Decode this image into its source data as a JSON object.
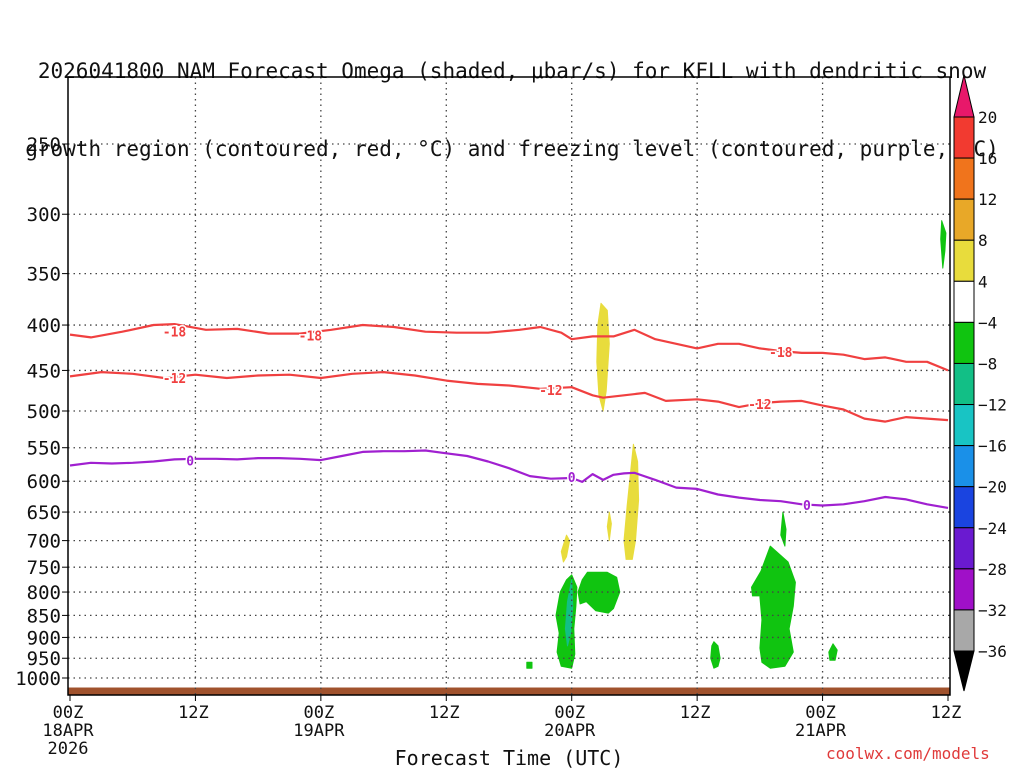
{
  "title_line1": "2026041800 NAM Forecast Omega (shaded, μbar/s) for KFLL with dendritic snow",
  "title_line2": "growth region (contoured, red, °C) and freezing level (contoured, purple, °C)",
  "credit": "coolwx.com/models",
  "chart_data": {
    "type": "heatmap",
    "title": "2026041800 NAM Forecast Omega (shaded, μbar/s) for KFLL with dendritic snow growth region (contoured, red, °C) and freezing level (contoured, purple, °C)",
    "xlabel": "Forecast Time (UTC)",
    "ylabel": "",
    "xlim": [
      0,
      84
    ],
    "ylim": [
      1000,
      200
    ],
    "y_scale": "log-pressure",
    "grid": true,
    "y_ticks": [
      250,
      300,
      350,
      400,
      450,
      500,
      550,
      600,
      650,
      700,
      750,
      800,
      850,
      900,
      950,
      1000
    ],
    "x_ticks": [
      {
        "x": 0,
        "line1": "00Z",
        "line2": "18APR",
        "line3": "2026"
      },
      {
        "x": 12,
        "line1": "12Z",
        "line2": "",
        "line3": ""
      },
      {
        "x": 24,
        "line1": "00Z",
        "line2": "19APR",
        "line3": ""
      },
      {
        "x": 36,
        "line1": "12Z",
        "line2": "",
        "line3": ""
      },
      {
        "x": 48,
        "line1": "00Z",
        "line2": "20APR",
        "line3": ""
      },
      {
        "x": 60,
        "line1": "12Z",
        "line2": "",
        "line3": ""
      },
      {
        "x": 72,
        "line1": "00Z",
        "line2": "21APR",
        "line3": ""
      },
      {
        "x": 84,
        "line1": "12Z",
        "line2": "",
        "line3": ""
      }
    ],
    "colorbar": {
      "labels": [
        "20",
        "16",
        "12",
        "8",
        "4",
        "−4",
        "−8",
        "−12",
        "−16",
        "−20",
        "−24",
        "−28",
        "−32",
        "−36"
      ],
      "colors": [
        "#e8186a",
        "#f23a30",
        "#f0741c",
        "#e8a828",
        "#e8dc3c",
        "#ffffff",
        "#10c410",
        "#12bf86",
        "#18c4c4",
        "#1a90e8",
        "#1a44e0",
        "#6a1ad0",
        "#a010c8",
        "#a8a8a8",
        "#000000"
      ]
    },
    "contours": [
      {
        "name": "-18",
        "color": "#f04040",
        "x": [
          0,
          2,
          5,
          8,
          10,
          13,
          16,
          19,
          22,
          25,
          28,
          31,
          34,
          37,
          40,
          43,
          45,
          47,
          48,
          50,
          52,
          54,
          56,
          58,
          60,
          62,
          64,
          66,
          68,
          70,
          72,
          74,
          76,
          78,
          80,
          82,
          84
        ],
        "p": [
          410,
          413,
          407,
          400,
          399,
          405,
          404,
          409,
          409,
          405,
          400,
          402,
          407,
          408,
          408,
          405,
          402,
          408,
          415,
          412,
          412,
          405,
          415,
          420,
          425,
          420,
          420,
          425,
          428,
          430,
          430,
          432,
          437,
          435,
          440,
          440,
          450
        ]
      },
      {
        "name": "-12",
        "color": "#f04040",
        "x": [
          0,
          3,
          6,
          9,
          12,
          15,
          18,
          21,
          24,
          27,
          30,
          33,
          36,
          39,
          42,
          45,
          48,
          50,
          51,
          53,
          55,
          57,
          60,
          62,
          64,
          66,
          68,
          70,
          72,
          74,
          76,
          78,
          80,
          82,
          84
        ],
        "p": [
          457,
          452,
          454,
          459,
          455,
          459,
          456,
          455,
          459,
          454,
          452,
          456,
          462,
          466,
          468,
          472,
          470,
          480,
          483,
          480,
          477,
          487,
          485,
          488,
          495,
          490,
          488,
          487,
          493,
          498,
          510,
          514,
          508,
          510,
          512
        ]
      },
      {
        "name": "0",
        "color": "#a020d0",
        "x": [
          0,
          2,
          4,
          6,
          8,
          10,
          12,
          14,
          16,
          18,
          20,
          22,
          24,
          26,
          28,
          30,
          32,
          34,
          36,
          38,
          40,
          42,
          44,
          46,
          48,
          49,
          50,
          51,
          52,
          53,
          54,
          56,
          58,
          60,
          62,
          64,
          66,
          68,
          70,
          72,
          74,
          76,
          78,
          80,
          82,
          84
        ],
        "p": [
          576,
          572,
          573,
          572,
          570,
          567,
          566,
          566,
          567,
          565,
          565,
          566,
          568,
          562,
          556,
          555,
          555,
          554,
          558,
          562,
          570,
          580,
          592,
          596,
          595,
          601,
          589,
          598,
          590,
          588,
          587,
          598,
          610,
          612,
          621,
          626,
          630,
          632,
          637,
          639,
          637,
          632,
          625,
          629,
          637,
          643
        ]
      }
    ],
    "contour_labels": [
      {
        "text": "-18",
        "x": 10,
        "p": 408
      },
      {
        "text": "-18",
        "x": 23,
        "p": 412
      },
      {
        "text": "-18",
        "x": 68,
        "p": 430
      },
      {
        "text": "-12",
        "x": 10,
        "p": 460
      },
      {
        "text": "-12",
        "x": 46,
        "p": 475
      },
      {
        "text": "-12",
        "x": 66,
        "p": 492
      },
      {
        "text": "0",
        "x": 11.5,
        "p": 570
      },
      {
        "text": "0",
        "x": 48,
        "p": 595
      },
      {
        "text": "0",
        "x": 70.5,
        "p": 640
      }
    ],
    "omega_regions": [
      {
        "value_bin": "4 to 8",
        "color": "#e8dc3c",
        "x": [
          50.8,
          51.4,
          51.6,
          51.3,
          51.0,
          50.6,
          50.4,
          50.5
        ],
        "p": [
          378,
          385,
          420,
          475,
          500,
          480,
          440,
          400
        ]
      },
      {
        "value_bin": "4 to 8",
        "color": "#e8dc3c",
        "x": [
          53.9,
          54.3,
          54.4,
          54.1,
          53.8,
          53.2,
          53.0,
          53.3
        ],
        "p": [
          545,
          570,
          630,
          700,
          735,
          735,
          700,
          640
        ]
      },
      {
        "value_bin": "4 to 8",
        "color": "#e8dc3c",
        "x": [
          51.6,
          51.8,
          51.6,
          51.4
        ],
        "p": [
          650,
          670,
          700,
          675
        ]
      },
      {
        "value_bin": "4 to 8",
        "color": "#e8dc3c",
        "x": [
          47.5,
          47.8,
          47.5,
          47.2,
          47.0
        ],
        "p": [
          690,
          700,
          730,
          740,
          720
        ]
      },
      {
        "value_bin": "-4 to -8",
        "color": "#10c410",
        "x": [
          48.0,
          48.5,
          48.4,
          48.2,
          48.3,
          48.0,
          47.0,
          46.6,
          46.8,
          46.5,
          46.9,
          47.5
        ],
        "p": [
          765,
          790,
          830,
          880,
          940,
          975,
          970,
          935,
          890,
          850,
          800,
          775
        ]
      },
      {
        "value_bin": "-4 to -8",
        "color": "#10c410",
        "x": [
          49.5,
          51.4,
          52.3,
          52.6,
          52.0,
          51.5,
          50.3,
          49.4,
          48.8,
          48.6,
          49.0
        ],
        "p": [
          760,
          760,
          770,
          800,
          835,
          845,
          840,
          820,
          825,
          800,
          775
        ]
      },
      {
        "value_bin": "-4 to -8",
        "color": "#10c410",
        "x": [
          47.5,
          47.8,
          48.0,
          47.5,
          47.1
        ],
        "p": [
          805,
          840,
          900,
          915,
          870
        ]
      },
      {
        "value_bin": "-8 to -12",
        "color": "#12bf86",
        "x": [
          48.0,
          48.1,
          47.9,
          47.6,
          47.4,
          47.6
        ],
        "p": [
          775,
          830,
          890,
          920,
          880,
          820
        ]
      },
      {
        "value_bin": "-4 to -8",
        "color": "#10c410",
        "x": [
          67.0,
          68.7,
          69.4,
          69.2,
          68.8,
          69.2,
          68.4,
          67.0,
          66.2,
          66.0,
          66.2,
          66.0,
          66.2,
          65.3,
          65.2,
          66.1
        ],
        "p": [
          710,
          740,
          780,
          830,
          880,
          935,
          970,
          975,
          960,
          925,
          860,
          810,
          808,
          808,
          790,
          758
        ]
      },
      {
        "value_bin": "-4 to -8",
        "color": "#10c410",
        "x": [
          68.2,
          68.5,
          68.4,
          68.0
        ],
        "p": [
          650,
          680,
          710,
          690
        ]
      },
      {
        "value_bin": "-4 to -8",
        "color": "#10c410",
        "x": [
          61.6,
          62.0,
          62.2,
          62.0,
          61.6,
          61.3,
          61.4
        ],
        "p": [
          910,
          920,
          950,
          970,
          975,
          950,
          920
        ]
      },
      {
        "value_bin": "-4 to -8",
        "color": "#10c410",
        "x": [
          73.0,
          73.4,
          73.2,
          72.7,
          72.6
        ],
        "p": [
          915,
          930,
          955,
          955,
          935
        ]
      },
      {
        "value_bin": "-4 to -8",
        "color": "#10c410",
        "x": [
          43.7,
          44.2,
          44.2,
          43.7
        ],
        "p": [
          960,
          960,
          975,
          975
        ]
      },
      {
        "value_bin": "-4 to -8",
        "color": "#10c410",
        "x": [
          83.4,
          83.8,
          83.7,
          83.5,
          83.3
        ],
        "p": [
          305,
          315,
          330,
          345,
          320
        ]
      }
    ],
    "terrain": {
      "color": "#a0522d",
      "top_p": 1025
    }
  }
}
